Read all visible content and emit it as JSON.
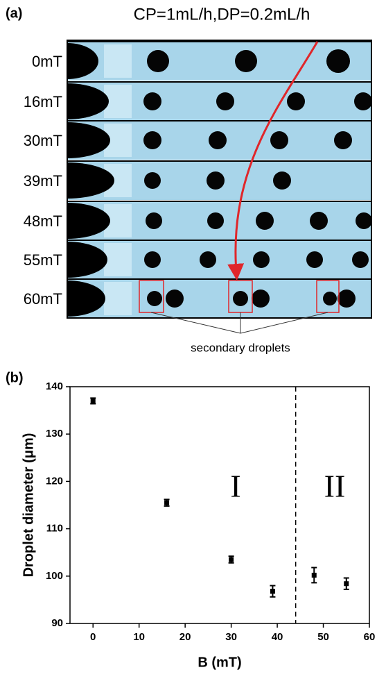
{
  "panel_a": {
    "label": "(a)",
    "title": "CP=1mL/h,DP=0.2mL/h",
    "rows": [
      "0mT",
      "16mT",
      "30mT",
      "39mT",
      "48mT",
      "55mT",
      "60mT"
    ],
    "annotation": "secondary droplets"
  },
  "chart_data": {
    "type": "scatter",
    "panel_label": "(b)",
    "x_label": "B (mT)",
    "y_label": "Droplet diameter (μm)",
    "x": [
      0,
      16,
      30,
      39,
      48,
      55
    ],
    "values": [
      137,
      115.5,
      103.5,
      96.8,
      100.2,
      98.4
    ],
    "errors": [
      0.6,
      0.7,
      0.7,
      1.2,
      1.6,
      1.2
    ],
    "color": "#000000",
    "xlim": [
      -5,
      60
    ],
    "xticks": [
      0,
      10,
      20,
      30,
      40,
      50,
      60
    ],
    "ylim": [
      90,
      140
    ],
    "yticks": [
      90,
      100,
      110,
      120,
      130,
      140
    ],
    "vline_x": 44,
    "annotations": [
      "I",
      "II"
    ]
  }
}
